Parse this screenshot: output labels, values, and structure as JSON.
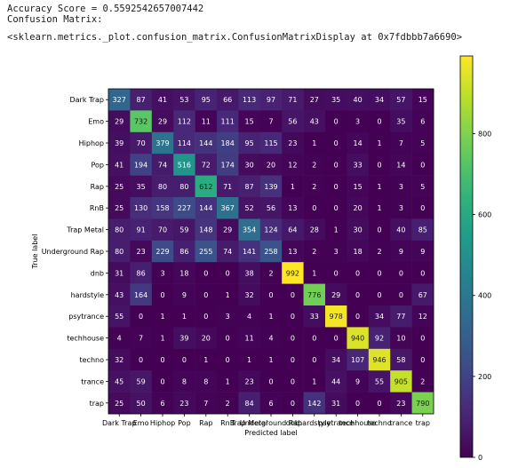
{
  "output": {
    "accuracy_line": "Accuracy Score = 0.5592542657007442",
    "title_line": "Confusion Matrix:",
    "repr_line": "<sklearn.metrics._plot.confusion_matrix.ConfusionMatrixDisplay at 0x7fdbbb7a6690>"
  },
  "chart_data": {
    "type": "heatmap",
    "xlabel": "Predicted label",
    "ylabel": "True label",
    "labels": [
      "Dark Trap",
      "Emo",
      "Hiphop",
      "Pop",
      "Rap",
      "RnB",
      "Trap Metal",
      "Underground Rap",
      "dnb",
      "hardstyle",
      "psytrance",
      "techhouse",
      "techno",
      "trance",
      "trap"
    ],
    "matrix": [
      [
        327,
        87,
        41,
        53,
        95,
        66,
        113,
        97,
        71,
        27,
        35,
        40,
        34,
        57,
        15
      ],
      [
        29,
        732,
        29,
        112,
        11,
        111,
        15,
        7,
        56,
        43,
        0,
        3,
        0,
        35,
        6
      ],
      [
        39,
        70,
        379,
        114,
        144,
        184,
        95,
        115,
        23,
        1,
        0,
        14,
        1,
        7,
        5
      ],
      [
        41,
        194,
        74,
        516,
        72,
        174,
        30,
        20,
        12,
        2,
        0,
        33,
        0,
        14,
        0
      ],
      [
        25,
        35,
        80,
        80,
        612,
        71,
        87,
        139,
        1,
        2,
        0,
        15,
        1,
        3,
        5
      ],
      [
        25,
        130,
        158,
        227,
        144,
        367,
        52,
        56,
        13,
        0,
        0,
        20,
        1,
        3,
        0
      ],
      [
        80,
        91,
        70,
        59,
        148,
        29,
        354,
        124,
        64,
        28,
        1,
        30,
        0,
        40,
        85
      ],
      [
        80,
        23,
        229,
        86,
        255,
        74,
        141,
        258,
        13,
        2,
        3,
        18,
        2,
        9,
        9
      ],
      [
        31,
        86,
        3,
        18,
        0,
        0,
        38,
        2,
        992,
        1,
        0,
        0,
        0,
        0,
        0
      ],
      [
        43,
        164,
        0,
        9,
        0,
        1,
        32,
        0,
        0,
        776,
        29,
        0,
        0,
        0,
        67
      ],
      [
        55,
        0,
        1,
        1,
        0,
        3,
        4,
        1,
        0,
        33,
        978,
        0,
        34,
        77,
        12
      ],
      [
        4,
        7,
        1,
        39,
        20,
        0,
        11,
        4,
        0,
        0,
        0,
        940,
        92,
        10,
        0
      ],
      [
        32,
        0,
        0,
        0,
        1,
        0,
        1,
        1,
        0,
        0,
        34,
        107,
        946,
        58,
        0
      ],
      [
        45,
        59,
        0,
        8,
        8,
        1,
        23,
        0,
        0,
        1,
        44,
        9,
        55,
        905,
        2
      ],
      [
        25,
        50,
        6,
        23,
        7,
        2,
        84,
        6,
        0,
        142,
        31,
        0,
        0,
        23,
        790
      ]
    ],
    "colormap": "viridis",
    "colorbar_ticks": [
      0,
      200,
      400,
      600,
      800
    ],
    "vmin": 0,
    "vmax": 992
  }
}
